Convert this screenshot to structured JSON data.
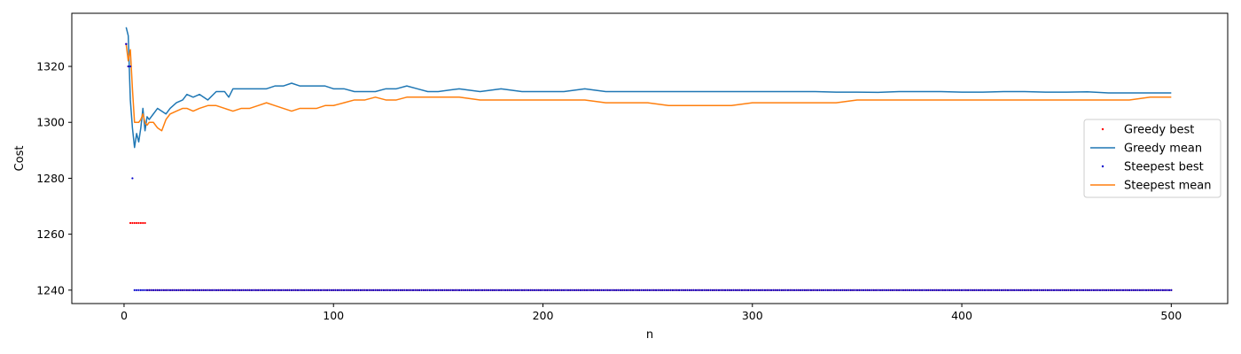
{
  "chart_data": {
    "type": "line",
    "title": "",
    "xlabel": "n",
    "ylabel": "Cost",
    "xlim": [
      -24.95,
      526.95
    ],
    "ylim": [
      1235.2,
      1339.0
    ],
    "xticks": [
      0,
      100,
      200,
      300,
      400,
      500
    ],
    "yticks": [
      1240,
      1260,
      1280,
      1300,
      1320
    ],
    "grid": false,
    "legend_position": "center-right",
    "series": [
      {
        "name": "Greedy best",
        "style": "points",
        "color": "#ff0000",
        "points": [
          [
            1,
            1328
          ],
          [
            2,
            1320
          ],
          [
            3,
            1264
          ],
          [
            4,
            1264
          ],
          [
            5,
            1264
          ],
          [
            6,
            1264
          ],
          [
            7,
            1264
          ],
          [
            8,
            1264
          ],
          [
            9,
            1264
          ],
          [
            10,
            1264
          ]
        ],
        "tail": {
          "x_from": 11,
          "x_to": 500,
          "value": 1240
        }
      },
      {
        "name": "Greedy mean",
        "style": "line",
        "color": "#1f77b4",
        "points": [
          [
            1,
            1334
          ],
          [
            2,
            1331
          ],
          [
            3,
            1308
          ],
          [
            4,
            1298
          ],
          [
            5,
            1291
          ],
          [
            6,
            1296
          ],
          [
            7,
            1293
          ],
          [
            8,
            1298
          ],
          [
            9,
            1305
          ],
          [
            10,
            1297
          ],
          [
            11,
            1302
          ],
          [
            12,
            1301
          ],
          [
            14,
            1303
          ],
          [
            16,
            1305
          ],
          [
            18,
            1304
          ],
          [
            20,
            1303
          ],
          [
            22,
            1305
          ],
          [
            25,
            1307
          ],
          [
            28,
            1308
          ],
          [
            30,
            1310
          ],
          [
            33,
            1309
          ],
          [
            36,
            1310
          ],
          [
            40,
            1308
          ],
          [
            44,
            1311
          ],
          [
            48,
            1311
          ],
          [
            50,
            1309
          ],
          [
            52,
            1312
          ],
          [
            56,
            1312
          ],
          [
            60,
            1312
          ],
          [
            64,
            1312
          ],
          [
            68,
            1312
          ],
          [
            72,
            1313
          ],
          [
            76,
            1313
          ],
          [
            80,
            1314
          ],
          [
            84,
            1313
          ],
          [
            88,
            1313
          ],
          [
            92,
            1313
          ],
          [
            96,
            1313
          ],
          [
            100,
            1312
          ],
          [
            105,
            1312
          ],
          [
            110,
            1311
          ],
          [
            115,
            1311
          ],
          [
            120,
            1311
          ],
          [
            125,
            1312
          ],
          [
            130,
            1312
          ],
          [
            135,
            1313
          ],
          [
            140,
            1312
          ],
          [
            145,
            1311
          ],
          [
            150,
            1311
          ],
          [
            160,
            1312
          ],
          [
            170,
            1311
          ],
          [
            180,
            1312
          ],
          [
            190,
            1311
          ],
          [
            200,
            1311
          ],
          [
            210,
            1311
          ],
          [
            220,
            1312
          ],
          [
            230,
            1311
          ],
          [
            240,
            1311
          ],
          [
            250,
            1311
          ],
          [
            260,
            1311
          ],
          [
            270,
            1311
          ],
          [
            280,
            1311
          ],
          [
            290,
            1311
          ],
          [
            300,
            1311
          ],
          [
            310,
            1311
          ],
          [
            320,
            1311
          ],
          [
            330,
            1311
          ],
          [
            340,
            1310.8
          ],
          [
            350,
            1310.8
          ],
          [
            360,
            1310.7
          ],
          [
            370,
            1311
          ],
          [
            380,
            1311
          ],
          [
            390,
            1311
          ],
          [
            400,
            1310.8
          ],
          [
            410,
            1310.8
          ],
          [
            420,
            1311
          ],
          [
            430,
            1311
          ],
          [
            440,
            1310.8
          ],
          [
            450,
            1310.8
          ],
          [
            460,
            1310.9
          ],
          [
            470,
            1310.5
          ],
          [
            480,
            1310.5
          ],
          [
            490,
            1310.5
          ],
          [
            500,
            1310.5
          ]
        ]
      },
      {
        "name": "Steepest best",
        "style": "points",
        "color": "#0000cc",
        "points": [
          [
            1,
            1328
          ],
          [
            2,
            1320
          ],
          [
            3,
            1320
          ],
          [
            4,
            1280
          ]
        ],
        "tail": {
          "x_from": 5,
          "x_to": 500,
          "value": 1240
        }
      },
      {
        "name": "Steepest mean",
        "style": "line",
        "color": "#ff7f0e",
        "points": [
          [
            1,
            1328
          ],
          [
            2,
            1322
          ],
          [
            3,
            1326
          ],
          [
            4,
            1312
          ],
          [
            5,
            1300
          ],
          [
            6,
            1300
          ],
          [
            7,
            1300
          ],
          [
            8,
            1301
          ],
          [
            9,
            1303
          ],
          [
            10,
            1300
          ],
          [
            11,
            1299
          ],
          [
            12,
            1300
          ],
          [
            14,
            1300
          ],
          [
            16,
            1298
          ],
          [
            18,
            1297
          ],
          [
            20,
            1301
          ],
          [
            22,
            1303
          ],
          [
            25,
            1304
          ],
          [
            28,
            1305
          ],
          [
            30,
            1305
          ],
          [
            33,
            1304
          ],
          [
            36,
            1305
          ],
          [
            40,
            1306
          ],
          [
            44,
            1306
          ],
          [
            48,
            1305
          ],
          [
            52,
            1304
          ],
          [
            56,
            1305
          ],
          [
            60,
            1305
          ],
          [
            64,
            1306
          ],
          [
            68,
            1307
          ],
          [
            72,
            1306
          ],
          [
            76,
            1305
          ],
          [
            80,
            1304
          ],
          [
            84,
            1305
          ],
          [
            88,
            1305
          ],
          [
            92,
            1305
          ],
          [
            96,
            1306
          ],
          [
            100,
            1306
          ],
          [
            105,
            1307
          ],
          [
            110,
            1308
          ],
          [
            115,
            1308
          ],
          [
            120,
            1309
          ],
          [
            125,
            1308
          ],
          [
            130,
            1308
          ],
          [
            135,
            1309
          ],
          [
            140,
            1309
          ],
          [
            145,
            1309
          ],
          [
            150,
            1309
          ],
          [
            160,
            1309
          ],
          [
            170,
            1308
          ],
          [
            180,
            1308
          ],
          [
            190,
            1308
          ],
          [
            200,
            1308
          ],
          [
            210,
            1308
          ],
          [
            220,
            1308
          ],
          [
            230,
            1307
          ],
          [
            240,
            1307
          ],
          [
            250,
            1307
          ],
          [
            260,
            1306
          ],
          [
            270,
            1306
          ],
          [
            280,
            1306
          ],
          [
            290,
            1306
          ],
          [
            300,
            1307
          ],
          [
            310,
            1307
          ],
          [
            320,
            1307
          ],
          [
            330,
            1307
          ],
          [
            340,
            1307
          ],
          [
            350,
            1308
          ],
          [
            360,
            1308
          ],
          [
            370,
            1308
          ],
          [
            380,
            1308
          ],
          [
            390,
            1308
          ],
          [
            400,
            1308
          ],
          [
            410,
            1308
          ],
          [
            420,
            1308
          ],
          [
            430,
            1308
          ],
          [
            440,
            1308
          ],
          [
            450,
            1308
          ],
          [
            460,
            1308
          ],
          [
            470,
            1308
          ],
          [
            480,
            1308
          ],
          [
            490,
            1309
          ],
          [
            500,
            1309
          ]
        ]
      }
    ]
  }
}
